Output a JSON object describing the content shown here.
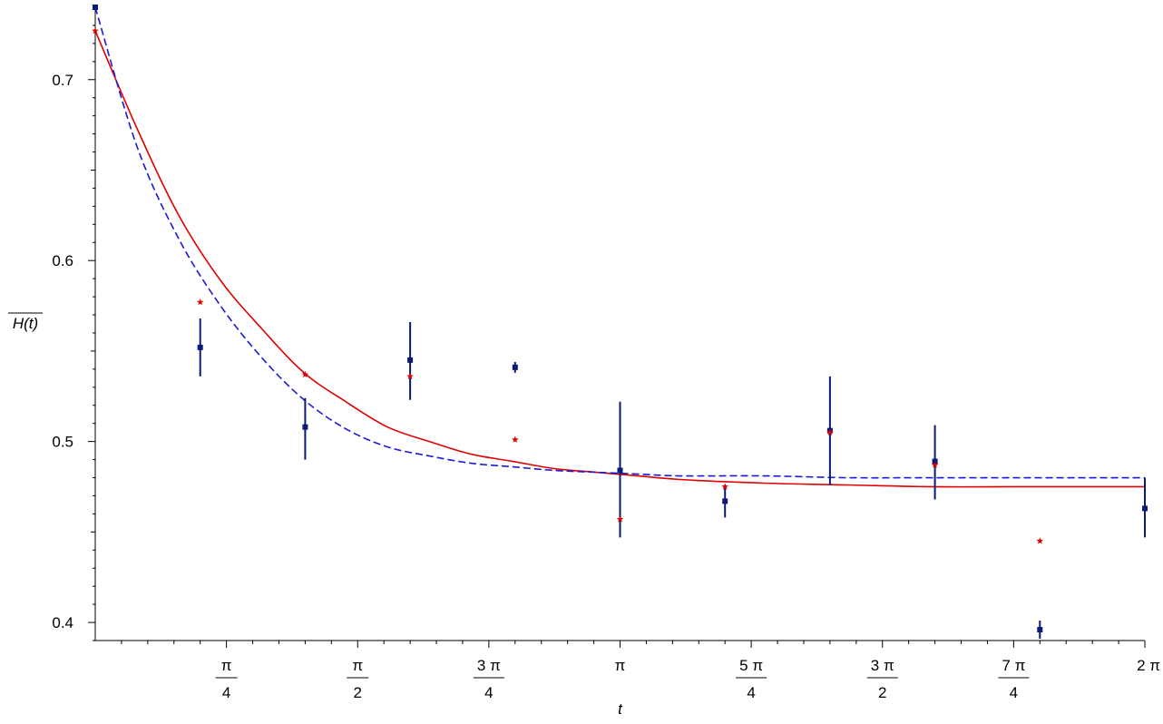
{
  "chart_data": {
    "type": "scatter",
    "xlabel": "t",
    "ylabel": "H(t)",
    "xlim": [
      0,
      6.2832
    ],
    "ylim": [
      0.39,
      0.74
    ],
    "grid": false,
    "colors": {
      "data": "#0a1a78",
      "fit_dashed": "#1a1ad8",
      "fit_solid": "#e00000",
      "model_points": "#e00000"
    },
    "x_ticks": [
      {
        "value": 0.7854,
        "label": "π/4"
      },
      {
        "value": 1.5708,
        "label": "π/2"
      },
      {
        "value": 2.3562,
        "label": "3π/4"
      },
      {
        "value": 3.1416,
        "label": "π"
      },
      {
        "value": 3.927,
        "label": "5π/4"
      },
      {
        "value": 4.7124,
        "label": "3π/2"
      },
      {
        "value": 5.4978,
        "label": "7π/4"
      },
      {
        "value": 6.2832,
        "label": "2π"
      }
    ],
    "y_ticks": [
      {
        "value": 0.4,
        "label": "0.4"
      },
      {
        "value": 0.5,
        "label": "0.5"
      },
      {
        "value": 0.6,
        "label": "0.6"
      },
      {
        "value": 0.7,
        "label": "0.7"
      }
    ],
    "measured": [
      {
        "x": 0.0,
        "y": 0.74,
        "err_low": 0.74,
        "err_high": 0.74
      },
      {
        "x": 0.6283,
        "y": 0.552,
        "err_low": 0.536,
        "err_high": 0.568
      },
      {
        "x": 1.2566,
        "y": 0.508,
        "err_low": 0.49,
        "err_high": 0.524
      },
      {
        "x": 1.885,
        "y": 0.545,
        "err_low": 0.523,
        "err_high": 0.566
      },
      {
        "x": 2.5133,
        "y": 0.541,
        "err_low": 0.538,
        "err_high": 0.544
      },
      {
        "x": 3.1416,
        "y": 0.484,
        "err_low": 0.447,
        "err_high": 0.522
      },
      {
        "x": 3.7699,
        "y": 0.467,
        "err_low": 0.458,
        "err_high": 0.476
      },
      {
        "x": 4.3982,
        "y": 0.506,
        "err_low": 0.476,
        "err_high": 0.536
      },
      {
        "x": 5.0265,
        "y": 0.489,
        "err_low": 0.468,
        "err_high": 0.509
      },
      {
        "x": 5.6549,
        "y": 0.396,
        "err_low": 0.391,
        "err_high": 0.401
      },
      {
        "x": 6.2832,
        "y": 0.463,
        "err_low": 0.447,
        "err_high": 0.48
      }
    ],
    "model_points": [
      {
        "x": 0.0,
        "y": 0.727
      },
      {
        "x": 0.6283,
        "y": 0.577
      },
      {
        "x": 1.2566,
        "y": 0.537
      },
      {
        "x": 1.885,
        "y": 0.536
      },
      {
        "x": 2.5133,
        "y": 0.501
      },
      {
        "x": 3.1416,
        "y": 0.457
      },
      {
        "x": 3.7699,
        "y": 0.475
      },
      {
        "x": 4.3982,
        "y": 0.505
      },
      {
        "x": 5.0265,
        "y": 0.487
      },
      {
        "x": 5.6549,
        "y": 0.445
      }
    ],
    "fit_dashed": {
      "style": "dashed",
      "x": [
        0.0,
        0.25,
        0.5,
        0.75,
        1.0,
        1.25,
        1.5,
        1.75,
        2.0,
        2.25,
        2.5,
        2.75,
        3.0,
        3.25,
        3.5,
        4.0,
        4.5,
        5.0,
        5.5,
        6.0,
        6.2832
      ],
      "y": [
        0.74,
        0.663,
        0.612,
        0.575,
        0.546,
        0.523,
        0.507,
        0.497,
        0.492,
        0.488,
        0.486,
        0.484,
        0.483,
        0.482,
        0.481,
        0.481,
        0.48,
        0.48,
        0.48,
        0.48,
        0.48
      ]
    },
    "fit_solid": {
      "style": "solid",
      "x": [
        0.0,
        0.25,
        0.5,
        0.75,
        1.0,
        1.25,
        1.5,
        1.75,
        2.0,
        2.25,
        2.5,
        2.75,
        3.0,
        3.25,
        3.5,
        4.0,
        4.5,
        5.0,
        5.5,
        6.0,
        6.2832
      ],
      "y": [
        0.727,
        0.673,
        0.625,
        0.589,
        0.562,
        0.538,
        0.522,
        0.508,
        0.5,
        0.493,
        0.489,
        0.485,
        0.483,
        0.481,
        0.479,
        0.477,
        0.476,
        0.475,
        0.475,
        0.475,
        0.475
      ]
    }
  }
}
